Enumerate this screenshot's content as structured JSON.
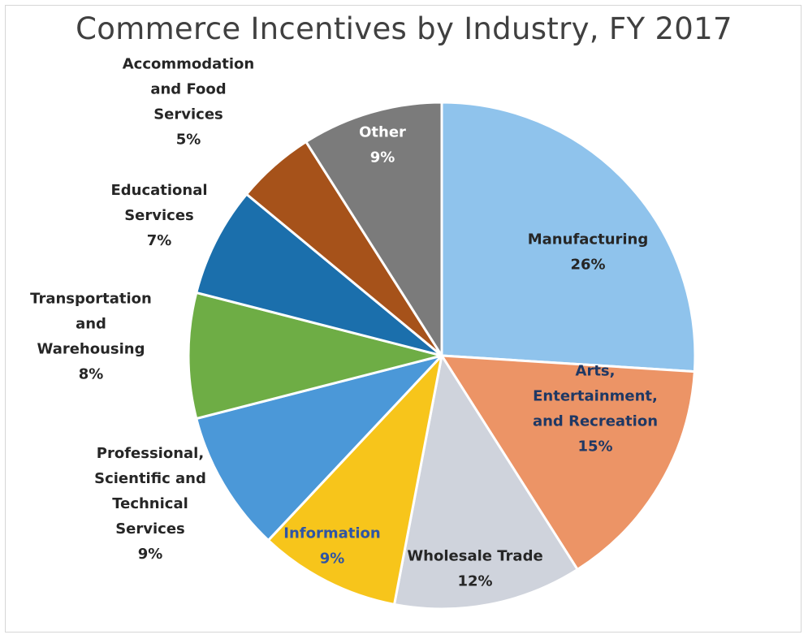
{
  "chart_data": {
    "type": "pie",
    "title": "Commerce Incentives by Industry, FY 2017",
    "slices": [
      {
        "label": "Manufacturing",
        "value": 26,
        "value_label": "26%",
        "color": "#8fc3ec",
        "text_color": "#262626"
      },
      {
        "label": "Arts, Entertainment, and Recreation",
        "value": 15,
        "value_label": "15%",
        "color": "#ec9466",
        "text_color": "#1f3864"
      },
      {
        "label": "Wholesale Trade",
        "value": 12,
        "value_label": "12%",
        "color": "#cfd3dc",
        "text_color": "#262626"
      },
      {
        "label": "Information",
        "value": 9,
        "value_label": "9%",
        "color": "#f7c51b",
        "text_color": "#2f55a4"
      },
      {
        "label": "Professional, Scientific and Technical Services",
        "value": 9,
        "value_label": "9%",
        "color": "#4b98d8",
        "text_color": "#262626"
      },
      {
        "label": "Transportation and Warehousing",
        "value": 8,
        "value_label": "8%",
        "color": "#6ead45",
        "text_color": "#262626"
      },
      {
        "label": "Educational Services",
        "value": 7,
        "value_label": "7%",
        "color": "#1b6fac",
        "text_color": "#262626"
      },
      {
        "label": "Accommodation and Food Services",
        "value": 5,
        "value_label": "5%",
        "color": "#a6521a",
        "text_color": "#262626"
      },
      {
        "label": "Other",
        "value": 9,
        "value_label": "9%",
        "color": "#7b7b7b",
        "text_color": "#ffffff"
      }
    ]
  }
}
